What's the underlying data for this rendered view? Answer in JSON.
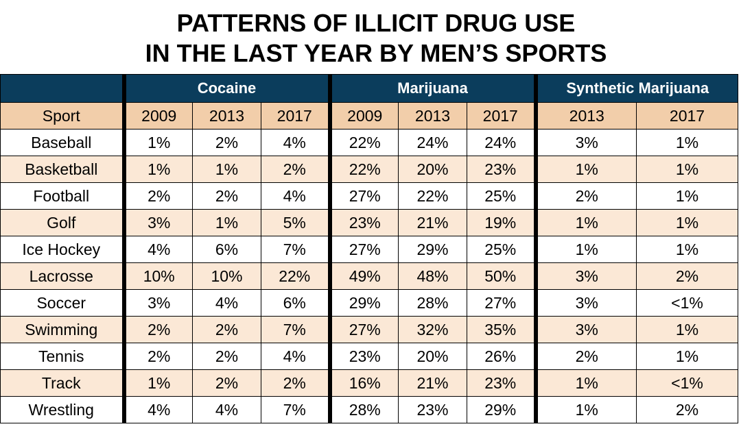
{
  "title": {
    "line1": "PATTERNS OF ILLICIT DRUG USE",
    "line2": "IN THE LAST YEAR BY MEN’S SPORTS"
  },
  "chart_data": {
    "type": "table",
    "title": "PATTERNS OF ILLICIT DRUG USE IN THE LAST YEAR BY MEN’S SPORTS",
    "groups": [
      {
        "name": "Cocaine",
        "years": [
          "2009",
          "2013",
          "2017"
        ]
      },
      {
        "name": "Marijuana",
        "years": [
          "2009",
          "2013",
          "2017"
        ]
      },
      {
        "name": "Synthetic Marijuana",
        "years": [
          "2013",
          "2017"
        ]
      }
    ],
    "first_column_header": "Sport",
    "rows": [
      {
        "sport": "Baseball",
        "cells": [
          "1%",
          "2%",
          "4%",
          "22%",
          "24%",
          "24%",
          "3%",
          "1%"
        ]
      },
      {
        "sport": "Basketball",
        "cells": [
          "1%",
          "1%",
          "2%",
          "22%",
          "20%",
          "23%",
          "1%",
          "1%"
        ]
      },
      {
        "sport": "Football",
        "cells": [
          "2%",
          "2%",
          "4%",
          "27%",
          "22%",
          "25%",
          "2%",
          "1%"
        ]
      },
      {
        "sport": "Golf",
        "cells": [
          "3%",
          "1%",
          "5%",
          "23%",
          "21%",
          "19%",
          "1%",
          "1%"
        ]
      },
      {
        "sport": "Ice Hockey",
        "cells": [
          "4%",
          "6%",
          "7%",
          "27%",
          "29%",
          "25%",
          "1%",
          "1%"
        ]
      },
      {
        "sport": "Lacrosse",
        "cells": [
          "10%",
          "10%",
          "22%",
          "49%",
          "48%",
          "50%",
          "3%",
          "2%"
        ]
      },
      {
        "sport": "Soccer",
        "cells": [
          "3%",
          "4%",
          "6%",
          "29%",
          "28%",
          "27%",
          "3%",
          "<1%"
        ]
      },
      {
        "sport": "Swimming",
        "cells": [
          "2%",
          "2%",
          "7%",
          "27%",
          "32%",
          "35%",
          "3%",
          "1%"
        ]
      },
      {
        "sport": "Tennis",
        "cells": [
          "2%",
          "2%",
          "4%",
          "23%",
          "20%",
          "26%",
          "2%",
          "1%"
        ]
      },
      {
        "sport": "Track",
        "cells": [
          "1%",
          "2%",
          "2%",
          "16%",
          "21%",
          "23%",
          "1%",
          "<1%"
        ]
      },
      {
        "sport": "Wrestling",
        "cells": [
          "4%",
          "4%",
          "7%",
          "28%",
          "23%",
          "29%",
          "1%",
          "2%"
        ]
      }
    ]
  },
  "colors": {
    "header_group_bg": "#0b3d5c",
    "header_year_bg": "#f2ceaa",
    "alt_row_bg": "#fbe8d6"
  }
}
